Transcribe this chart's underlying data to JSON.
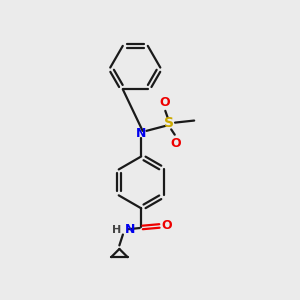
{
  "background_color": "#ebebeb",
  "bond_color": "#1a1a1a",
  "n_color": "#0000ee",
  "o_color": "#ee0000",
  "s_color": "#ccaa00",
  "h_color": "#444444",
  "figsize": [
    3.0,
    3.0
  ],
  "dpi": 100,
  "xlim": [
    0,
    10
  ],
  "ylim": [
    0,
    10
  ]
}
